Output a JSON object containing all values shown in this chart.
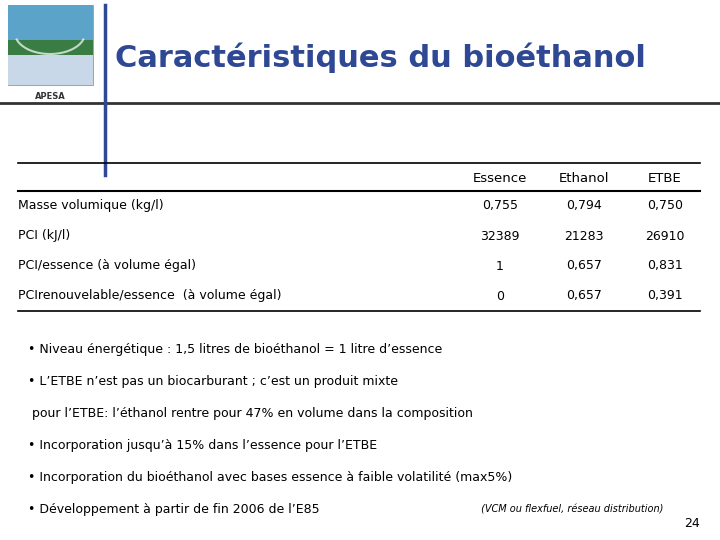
{
  "title": "Caractéristiques du bioéthanol",
  "title_color": "#2E4894",
  "background_color": "#FFFFFF",
  "table_headers": [
    "",
    "Essence",
    "Ethanol",
    "ETBE"
  ],
  "table_rows": [
    [
      "Masse volumique (kg/l)",
      "0,755",
      "0,794",
      "0,750"
    ],
    [
      "PCI (kJ/l)",
      "32389",
      "21283",
      "26910"
    ],
    [
      "PCI/essence (à volume égal)",
      "1",
      "0,657",
      "0,831"
    ],
    [
      "PCIrenouvelable/essence  (à volume égal)",
      "0",
      "0,657",
      "0,391"
    ]
  ],
  "bullets": [
    {
      "text": "• Niveau énergétique : 1,5 litres de bioéthanol = 1 litre d’essence",
      "indent": false
    },
    {
      "text": "• L’ETBE n’est pas un biocarburant ; c’est un produit mixte",
      "indent": false
    },
    {
      "text": " pour l’ETBE: l’éthanol rentre pour 47% en volume dans la composition",
      "indent": true
    },
    {
      "text": "• Incorporation jusqu’à 15% dans l’essence pour l’ETBE",
      "indent": false
    },
    {
      "text": "• Incorporation du bioéthanol avec bases essence à faible volatilité (max5%)",
      "indent": false
    },
    {
      "text": "• Développement à partir de fin 2006 de l’E85",
      "indent": false,
      "suffix": " (VCM ou flexfuel, réseau distribution)"
    }
  ],
  "text_color": "#000000",
  "page_number": "24",
  "divider_color": "#333333",
  "blue_line_color": "#2E4894",
  "table_line_color": "#000000"
}
